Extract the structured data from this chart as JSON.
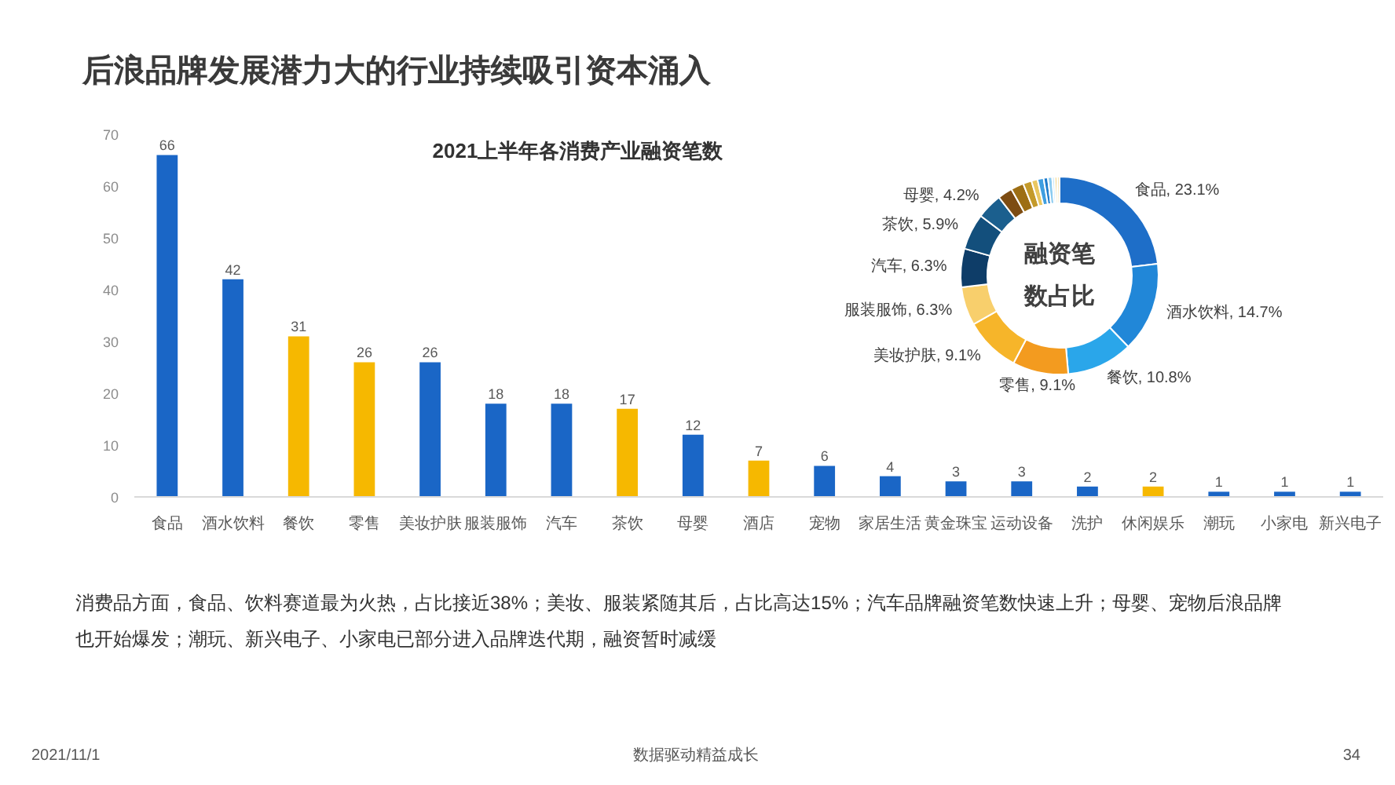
{
  "chart_data": [
    {
      "type": "bar",
      "title": "后浪品牌发展潜力大的行业持续吸引资本涌入",
      "subtitle": "2021上半年各消费产业融资笔数",
      "categories": [
        "食品",
        "酒水饮料",
        "餐饮",
        "零售",
        "美妆护肤",
        "服装服饰",
        "汽车",
        "茶饮",
        "母婴",
        "酒店",
        "宠物",
        "家居生活",
        "黄金珠宝",
        "运动设备",
        "洗护",
        "休闲娱乐",
        "潮玩",
        "小家电",
        "新兴电子"
      ],
      "values": [
        66,
        42,
        31,
        26,
        26,
        18,
        18,
        17,
        12,
        7,
        6,
        4,
        3,
        3,
        2,
        2,
        1,
        1,
        1
      ],
      "colors": [
        "#1a66c6",
        "#1a66c6",
        "#f6b800",
        "#f6b800",
        "#1a66c6",
        "#1a66c6",
        "#1a66c6",
        "#f6b800",
        "#1a66c6",
        "#f6b800",
        "#1a66c6",
        "#1a66c6",
        "#1a66c6",
        "#1a66c6",
        "#1a66c6",
        "#f6b800",
        "#1a66c6",
        "#1a66c6",
        "#1a66c6"
      ],
      "ylim": [
        0,
        70
      ],
      "yticks": [
        0,
        10,
        20,
        30,
        40,
        50,
        60,
        70
      ],
      "data_labels": true
    },
    {
      "type": "donut",
      "title": "融资笔数占比",
      "categories": [
        "食品",
        "酒水饮料",
        "餐饮",
        "零售",
        "美妆护肤",
        "服装服饰",
        "汽车",
        "茶饮",
        "母婴",
        null,
        null,
        null,
        null,
        null,
        null,
        null,
        null,
        null,
        null
      ],
      "values": [
        23.1,
        14.7,
        10.8,
        9.1,
        9.1,
        6.3,
        6.3,
        5.9,
        4.2,
        2.4,
        2.1,
        1.4,
        1.0,
        1.0,
        0.7,
        0.7,
        0.4,
        0.4,
        0.4
      ],
      "colors": [
        "#1e6ec8",
        "#2187d8",
        "#2aa6ea",
        "#f39b1f",
        "#f6b52a",
        "#f8cf6c",
        "#0e3d68",
        "#134f7c",
        "#1b5f8e",
        "#7d4c12",
        "#9d6e14",
        "#c49a2a",
        "#e9c760",
        "#3f9ee0",
        "#1f7ccc",
        "#8acbf0",
        "#c4e5f7",
        "#f5d585",
        "#fbe8b5"
      ],
      "value_labels": [
        "23.1%",
        "14.7%",
        "10.8%",
        "9.1%",
        "9.1%",
        "6.3%",
        "6.3%",
        "5.9%",
        "4.2%",
        null,
        null,
        null,
        null,
        null,
        null,
        null,
        null,
        null,
        null
      ]
    },
    {
      "type": "other",
      "annotations": [
        "消费品方面，食品、饮料赛道最为火热，占比接近38%；美妆、服装紧随其后，占比高达15%；汽车品牌融资笔数快速上升；母婴、宠物后浪品牌也开始爆发；潮玩、新兴电子、小家电已部分进入品牌迭代期，融资暂时减缓",
        "2021/11/1",
        "数据驱动精益成长",
        "34"
      ]
    }
  ]
}
